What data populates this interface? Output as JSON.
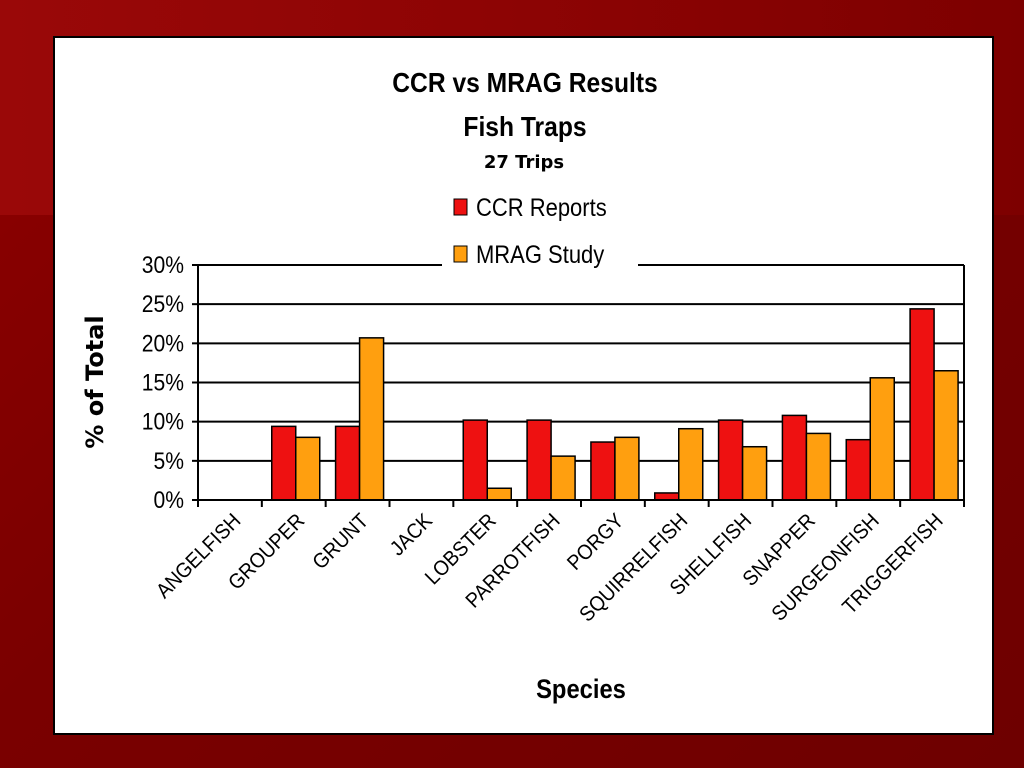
{
  "chart_data": {
    "type": "bar",
    "title": "CCR vs MRAG Results",
    "subtitle": "Fish Traps",
    "note": "27 Trips",
    "xlabel": "Species",
    "ylabel": "% of Total",
    "ylim": [
      0,
      30
    ],
    "yticks": [
      "0%",
      "5%",
      "10%",
      "15%",
      "20%",
      "25%",
      "30%"
    ],
    "grid": true,
    "legend_position": "top-center",
    "categories": [
      "ANGELFISH",
      "GROUPER",
      "GRUNT",
      "JACK",
      "LOBSTER",
      "PARROTFISH",
      "PORGY",
      "SQUIRRELFISH",
      "SHELLFISH",
      "SNAPPER",
      "SURGEONFISH",
      "TRIGGERFISH"
    ],
    "series": [
      {
        "name": "CCR Reports",
        "color": "#ee1111",
        "values": [
          0,
          9.4,
          9.4,
          0,
          10.2,
          10.2,
          7.4,
          0.9,
          10.2,
          10.8,
          7.7,
          24.4
        ]
      },
      {
        "name": "MRAG Study",
        "color": "#ff9f0f",
        "values": [
          0,
          8.0,
          20.7,
          0,
          1.5,
          5.6,
          8.0,
          9.1,
          6.8,
          8.5,
          15.6,
          16.5
        ]
      }
    ]
  }
}
